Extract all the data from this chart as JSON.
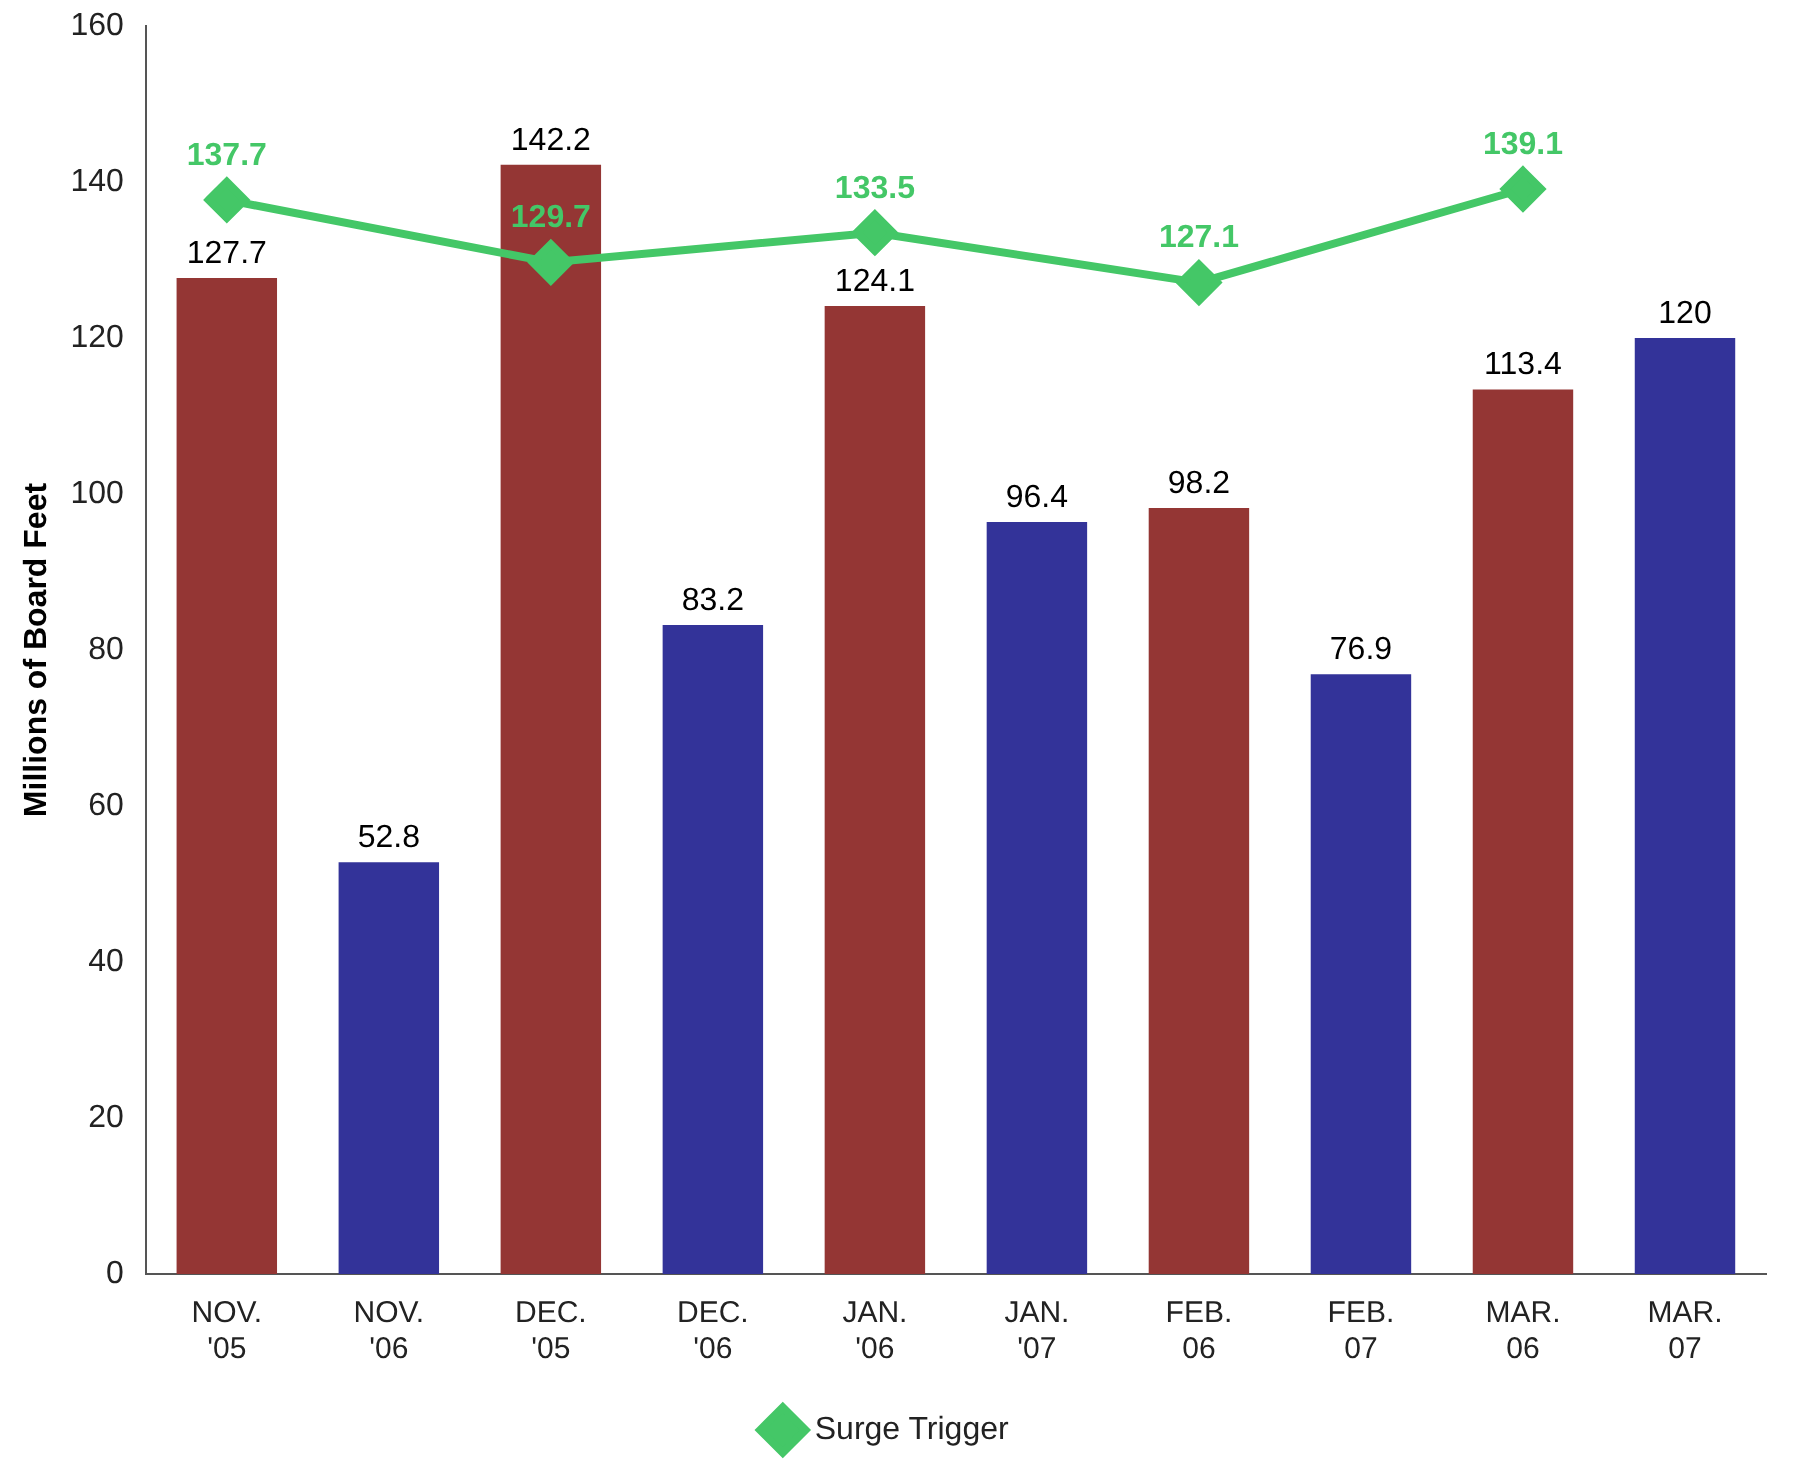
{
  "chart_data": {
    "type": "bar",
    "ylabel": "Millions of Board Feet",
    "categories": [
      "NOV. '05",
      "NOV. '06",
      "DEC. '05",
      "DEC. '06",
      "JAN. '06",
      "JAN. '07",
      "FEB. 06",
      "FEB. 07",
      "MAR. 06",
      "MAR. 07"
    ],
    "series": [
      {
        "color": "#943634",
        "values": [
          127.7,
          null,
          142.2,
          null,
          124.1,
          null,
          98.2,
          null,
          113.4,
          null
        ]
      },
      {
        "color": "#333399",
        "values": [
          null,
          52.8,
          null,
          83.2,
          null,
          96.4,
          null,
          76.9,
          null,
          120
        ]
      },
      {
        "type": "line",
        "name": "Surge Trigger",
        "color": "#44c767",
        "marker": "diamond",
        "values": [
          137.7,
          null,
          129.7,
          null,
          133.5,
          null,
          127.1,
          null,
          139.1,
          null
        ]
      }
    ],
    "ylim": [
      0,
      160
    ],
    "yticks": [
      0,
      20,
      40,
      60,
      80,
      100,
      120,
      140,
      160
    ],
    "grid": false,
    "legend": "bottom",
    "data_labels": true
  }
}
